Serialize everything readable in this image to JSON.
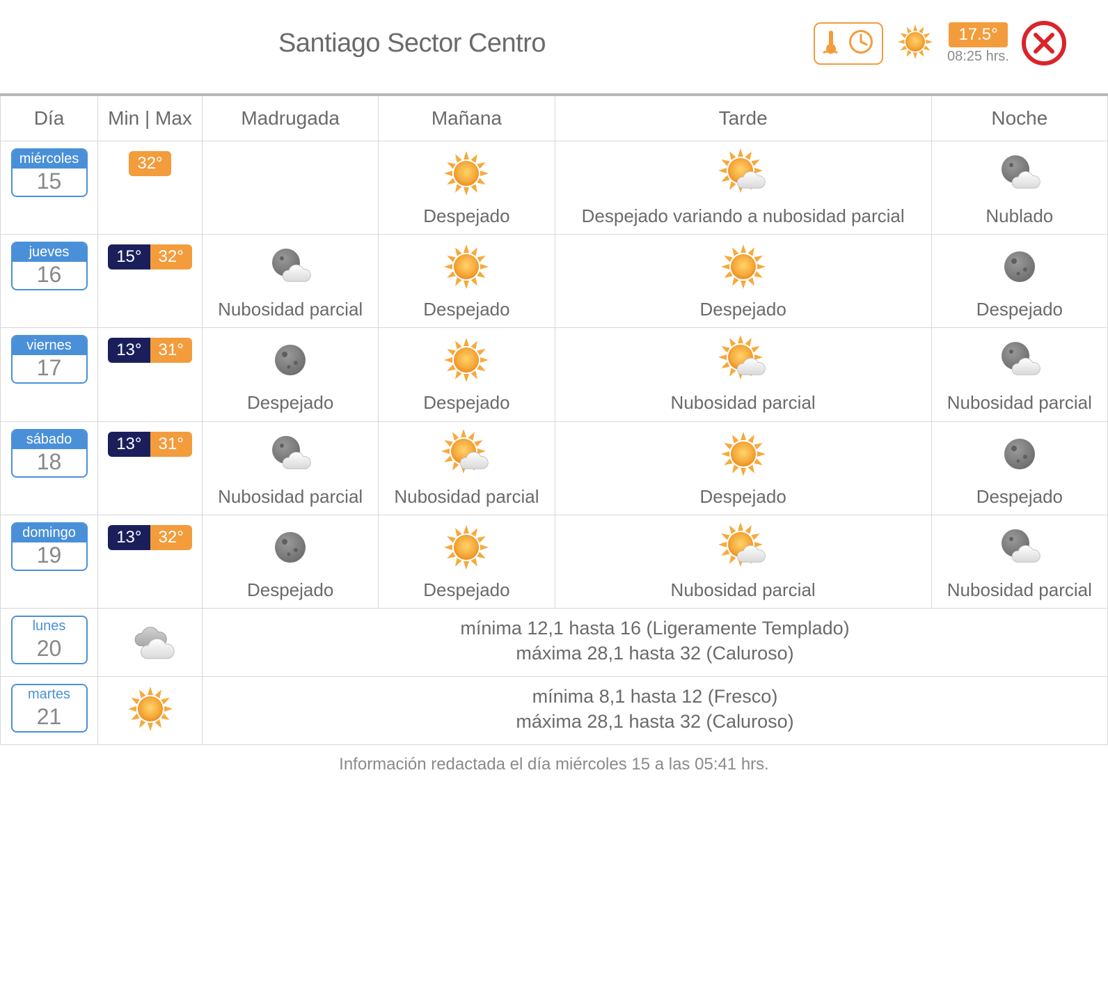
{
  "location": "Santiago Sector Centro",
  "current": {
    "temp": "17.5°",
    "time": "08:25 hrs."
  },
  "columns": {
    "dia": "Día",
    "minmax": "Min | Max",
    "madrugada": "Madrugada",
    "manana": "Mañana",
    "tarde": "Tarde",
    "noche": "Noche"
  },
  "days": [
    {
      "dow": "miércoles",
      "num": "15",
      "tmin": null,
      "tmax": "32°",
      "periods": {
        "madrugada": null,
        "manana": {
          "icon": "sun",
          "label": "Despejado"
        },
        "tarde": {
          "icon": "sun-cloud",
          "label": "Despejado variando a nubosidad parcial"
        },
        "noche": {
          "icon": "moon-cloud",
          "label": "Nublado"
        }
      }
    },
    {
      "dow": "jueves",
      "num": "16",
      "tmin": "15°",
      "tmax": "32°",
      "periods": {
        "madrugada": {
          "icon": "moon-cloud",
          "label": "Nubosidad parcial"
        },
        "manana": {
          "icon": "sun",
          "label": "Despejado"
        },
        "tarde": {
          "icon": "sun",
          "label": "Despejado"
        },
        "noche": {
          "icon": "moon",
          "label": "Despejado"
        }
      }
    },
    {
      "dow": "viernes",
      "num": "17",
      "tmin": "13°",
      "tmax": "31°",
      "periods": {
        "madrugada": {
          "icon": "moon",
          "label": "Despejado"
        },
        "manana": {
          "icon": "sun",
          "label": "Despejado"
        },
        "tarde": {
          "icon": "sun-cloud",
          "label": "Nubosidad parcial"
        },
        "noche": {
          "icon": "moon-cloud",
          "label": "Nubosidad parcial"
        }
      }
    },
    {
      "dow": "sábado",
      "num": "18",
      "tmin": "13°",
      "tmax": "31°",
      "periods": {
        "madrugada": {
          "icon": "moon-cloud",
          "label": "Nubosidad parcial"
        },
        "manana": {
          "icon": "sun-cloud",
          "label": "Nubosidad parcial"
        },
        "tarde": {
          "icon": "sun",
          "label": "Despejado"
        },
        "noche": {
          "icon": "moon",
          "label": "Despejado"
        }
      }
    },
    {
      "dow": "domingo",
      "num": "19",
      "tmin": "13°",
      "tmax": "32°",
      "periods": {
        "madrugada": {
          "icon": "moon",
          "label": "Despejado"
        },
        "manana": {
          "icon": "sun",
          "label": "Despejado"
        },
        "tarde": {
          "icon": "sun-cloud",
          "label": "Nubosidad parcial"
        },
        "noche": {
          "icon": "moon-cloud",
          "label": "Nubosidad parcial"
        }
      }
    }
  ],
  "summaries": [
    {
      "dow": "lunes",
      "num": "20",
      "icon": "clouds",
      "line1": "mínima 12,1 hasta 16 (Ligeramente Templado)",
      "line2": "máxima 28,1 hasta 32 (Caluroso)"
    },
    {
      "dow": "martes",
      "num": "21",
      "icon": "sun",
      "line1": "mínima 8,1 hasta 12 (Fresco)",
      "line2": "máxima 28,1 hasta 32 (Caluroso)"
    }
  ],
  "footer": "Información redactada el día miércoles 15 a las 05:41 hrs.",
  "colors": {
    "accent_orange": "#f39c3c",
    "accent_blue": "#4a90d9",
    "accent_navy": "#1a1f5c",
    "close_red": "#d9242a",
    "text_gray": "#6a6a6a",
    "border_gray": "#d8d8d8"
  }
}
